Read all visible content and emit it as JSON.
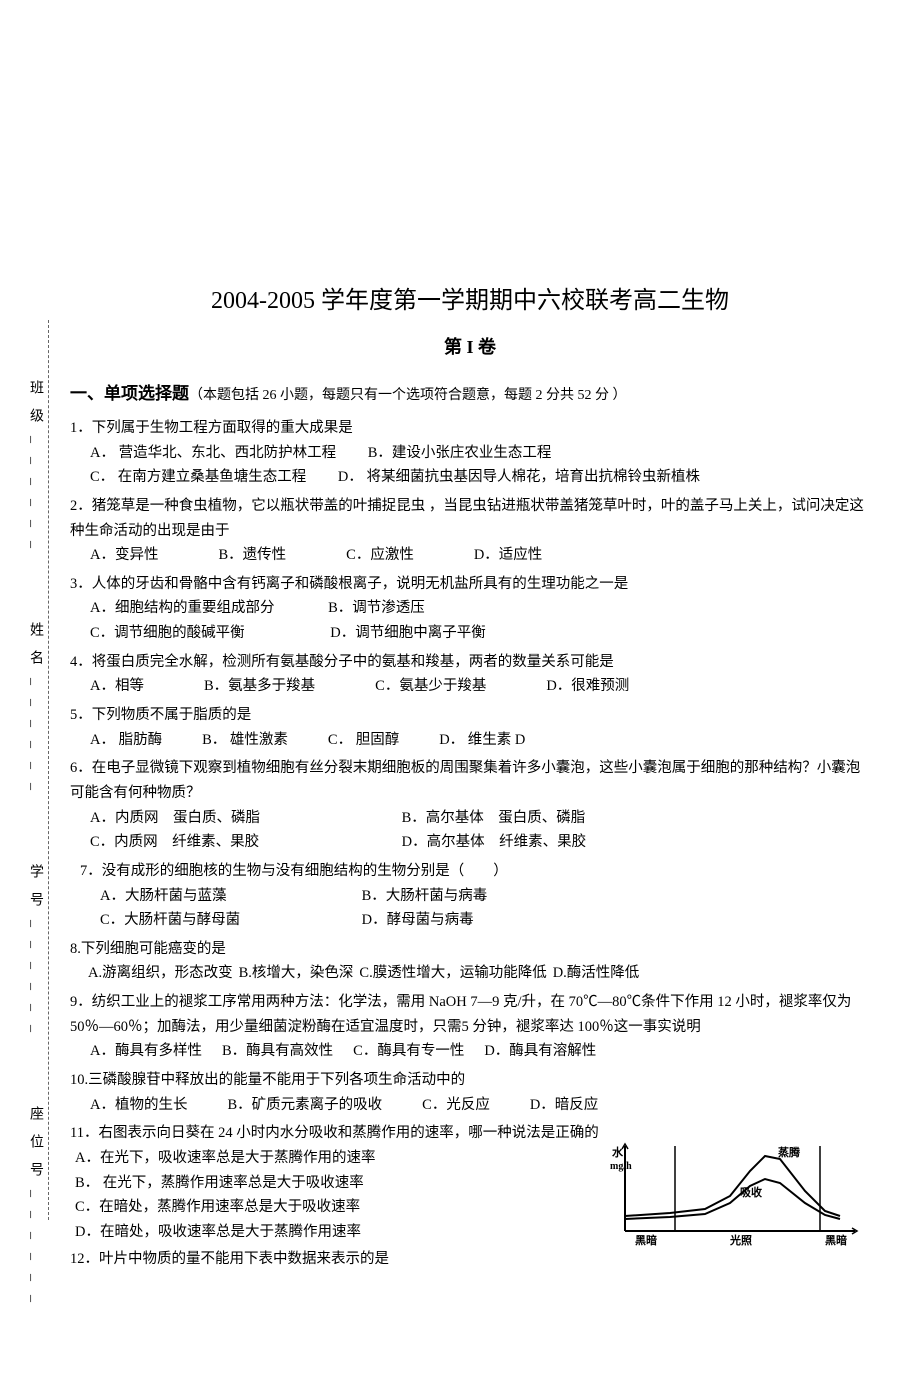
{
  "title": "2004-2005 学年度第一学期期中六校联考高二生物",
  "subtitle": "第 I 卷",
  "section_heading": "一、单项选择题",
  "section_note": "（本题包括 26 小题，每题只有一个选项符合题意，每题 2 分共 52 分 ）",
  "side_labels": {
    "class": "班级",
    "name": "姓名",
    "student_id": "学号",
    "seat": "座位号"
  },
  "questions": {
    "q1": {
      "stem": "1．下列属于生物工程方面取得的重大成果是",
      "a": "A． 营造华北、东北、西北防护林工程",
      "b": "B．建设小张庄农业生态工程",
      "c": "C． 在南方建立桑基鱼塘生态工程",
      "d": "D． 将某细菌抗虫基因导人棉花，培育出抗棉铃虫新植株"
    },
    "q2": {
      "stem": "2．猪笼草是一种食虫植物，它以瓶状带盖的叶捕捉昆虫 ，当昆虫钻进瓶状带盖猪笼草叶时，叶的盖子马上关上，试问决定这种生命活动的出现是由于",
      "a": "A．变异性",
      "b": "B．遗传性",
      "c": "C．应激性",
      "d": "D．适应性"
    },
    "q3": {
      "stem": "3．人体的牙齿和骨骼中含有钙离子和磷酸根离子，说明无机盐所具有的生理功能之一是",
      "a": "A．细胞结构的重要组成部分",
      "b": "B．调节渗透压",
      "c": "C．调节细胞的酸碱平衡",
      "d": "D．调节细胞中离子平衡"
    },
    "q4": {
      "stem": "4．将蛋白质完全水解，检测所有氨基酸分子中的氨基和羧基，两者的数量关系可能是",
      "a": "A．相等",
      "b": "B．氨基多于羧基",
      "c": "C．氨基少于羧基",
      "d": "D．很难预测"
    },
    "q5": {
      "stem": "5．下列物质不属于脂质的是",
      "a": "A． 脂肪酶",
      "b": "B． 雄性激素",
      "c": "C． 胆固醇",
      "d": "D． 维生素 D"
    },
    "q6": {
      "stem": "6．在电子显微镜下观察到植物细胞有丝分裂末期细胞板的周围聚集着许多小囊泡，这些小囊泡属于细胞的那种结构？小囊泡可能含有何种物质？",
      "a": "A．内质网　蛋白质、磷脂",
      "b": "B．高尔基体　蛋白质、磷脂",
      "c": "C．内质网　纤维素、果胶",
      "d": "D．高尔基体　纤维素、果胶"
    },
    "q7": {
      "stem": "7．没有成形的细胞核的生物与没有细胞结构的生物分别是（　　）",
      "a": "A．大肠杆菌与蓝藻",
      "b": "B．大肠杆菌与病毒",
      "c": "C．大肠杆菌与酵母菌",
      "d": "D．酵母菌与病毒"
    },
    "q8": {
      "stem": "8.下列细胞可能癌变的是",
      "a": "A.游离组织，形态改变",
      "b": "B.核增大，染色深",
      "c": "C.膜透性增大，运输功能降低",
      "d": "D.酶活性降低"
    },
    "q9": {
      "stem": "9．纺织工业上的褪浆工序常用两种方法：化学法，需用 NaOH 7—9 克/升，在 70℃—80℃条件下作用 12 小时，褪浆率仅为 50％—60％；加酶法，用少量细菌淀粉酶在适宜温度时，只需5 分钟，褪浆率达 100％这一事实说明",
      "a": "A．酶具有多样性",
      "b": "B．酶具有高效性",
      "c": "C．酶具有专一性",
      "d": "D．酶具有溶解性"
    },
    "q10": {
      "stem": "10.三磷酸腺苷中释放出的能量不能用于下列各项生命活动中的",
      "a": "A．植物的生长",
      "b": "B．矿质元素离子的吸收",
      "c": "C．光反应",
      "d": "D．暗反应"
    },
    "q11": {
      "stem": "11．右图表示向日葵在 24 小时内水分吸收和蒸腾作用的速率，哪一种说法是正确的",
      "a": "A．在光下，吸收速率总是大于蒸腾作用的速率",
      "b": "B． 在光下，蒸腾作用速率总是大于吸收速率",
      "c": "C．在暗处，蒸腾作用速率总是大于吸收速率",
      "d": "D．在暗处，吸收速率总是大于蒸腾作用速率"
    },
    "q12": {
      "stem": "12．叶片中物质的量不能用下表中数据来表示的是"
    }
  },
  "chart": {
    "ylabel": "水\nmg/h",
    "xlabels": [
      "黑暗",
      "光照",
      "黑暗"
    ],
    "curve1_label": "蒸腾",
    "curve2_label": "吸收",
    "line_color": "#000000",
    "background_color": "#ffffff",
    "stroke_width": 2,
    "curve1_points": [
      [
        15,
        75
      ],
      [
        60,
        72
      ],
      [
        95,
        68
      ],
      [
        120,
        55
      ],
      [
        140,
        30
      ],
      [
        155,
        15
      ],
      [
        170,
        18
      ],
      [
        195,
        50
      ],
      [
        215,
        70
      ],
      [
        230,
        75
      ]
    ],
    "curve2_points": [
      [
        15,
        78
      ],
      [
        60,
        76
      ],
      [
        95,
        73
      ],
      [
        120,
        62
      ],
      [
        140,
        45
      ],
      [
        155,
        38
      ],
      [
        170,
        42
      ],
      [
        195,
        62
      ],
      [
        215,
        74
      ],
      [
        230,
        78
      ]
    ]
  }
}
